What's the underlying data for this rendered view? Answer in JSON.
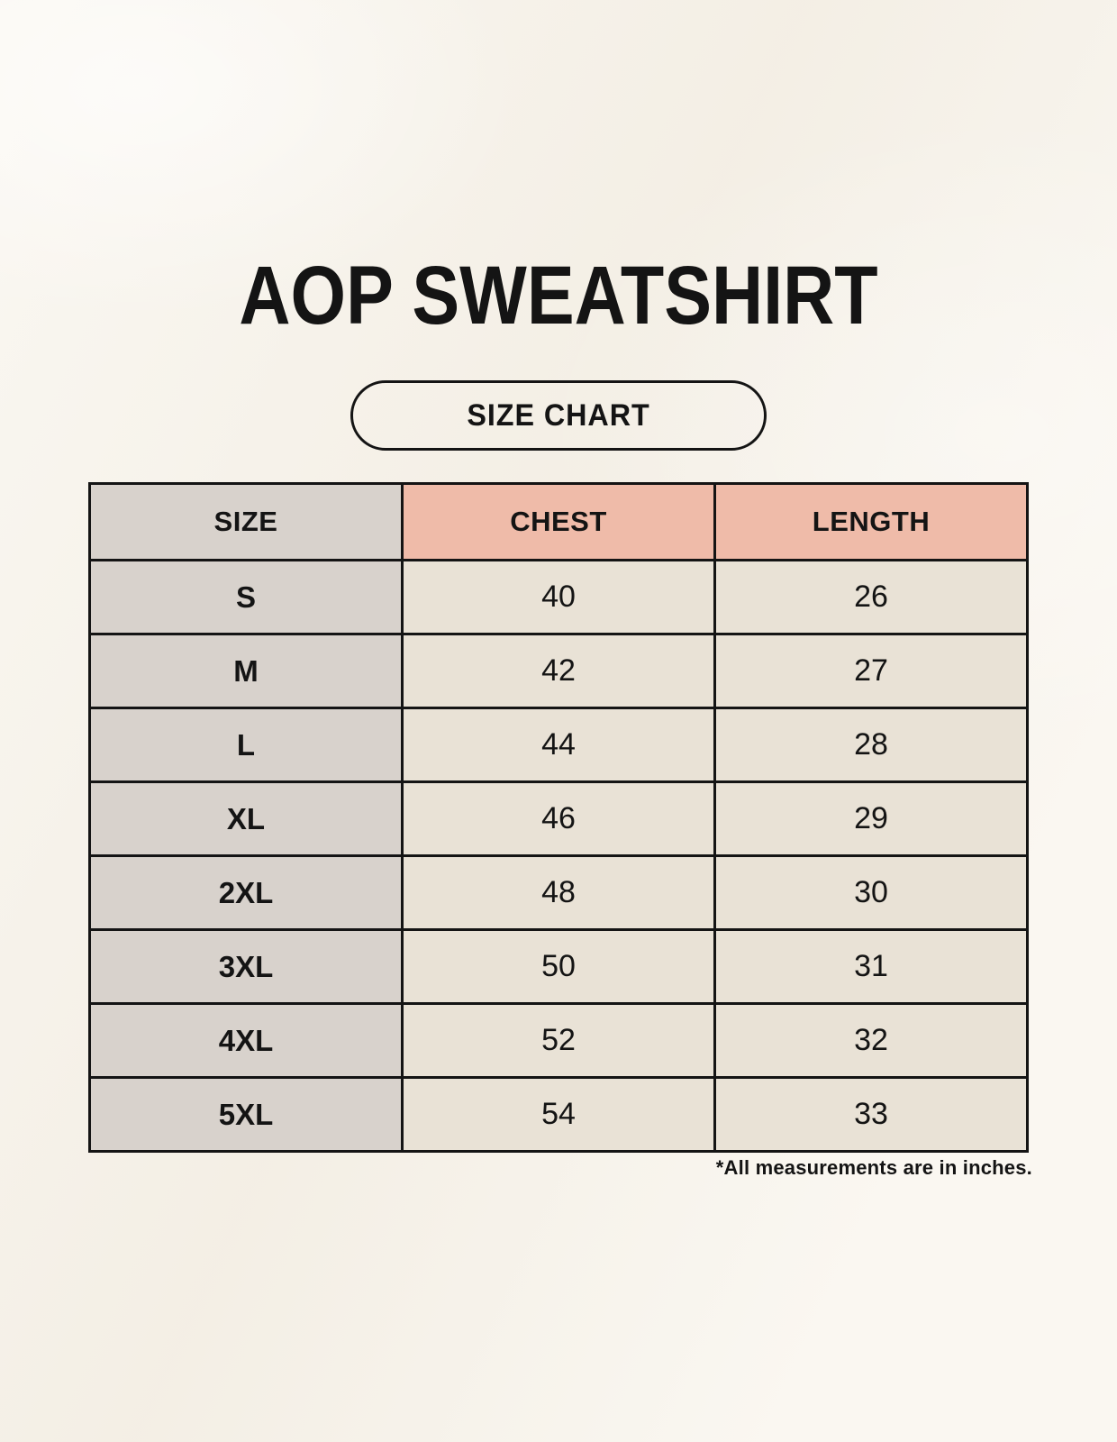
{
  "page": {
    "title": "AOP SWEATSHIRT",
    "badge": "SIZE CHART",
    "footnote": "*All measurements are in inches."
  },
  "chart_data": {
    "type": "table",
    "title": "AOP Sweatshirt size chart",
    "columns": [
      "SIZE",
      "CHEST",
      "LENGTH"
    ],
    "rows": [
      [
        "S",
        "40",
        "26"
      ],
      [
        "M",
        "42",
        "27"
      ],
      [
        "L",
        "44",
        "28"
      ],
      [
        "XL",
        "46",
        "29"
      ],
      [
        "2XL",
        "48",
        "30"
      ],
      [
        "3XL",
        "50",
        "31"
      ],
      [
        "4XL",
        "52",
        "32"
      ],
      [
        "5XL",
        "54",
        "33"
      ]
    ],
    "units": "inches"
  },
  "colors": {
    "background": "#F8F4EC",
    "size_column_bg": "#D8D2CC",
    "header_accent_bg": "#EFBBA9",
    "cell_bg": "#E9E2D6",
    "border": "#141414",
    "text": "#141414"
  }
}
